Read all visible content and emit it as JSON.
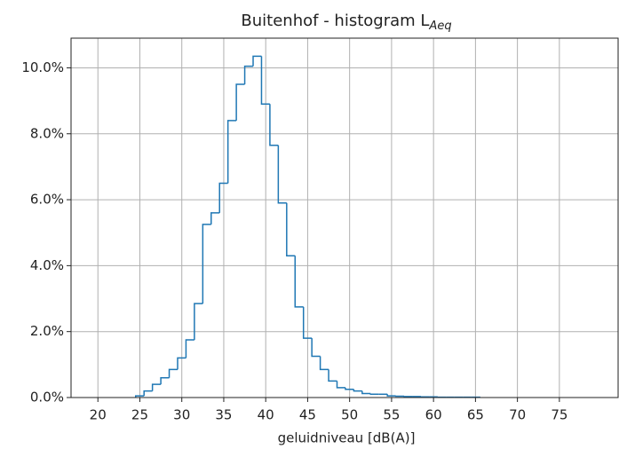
{
  "chart_data": {
    "type": "histogram",
    "title": "Buitenhof - histogram L",
    "title_subscript": "Aeq",
    "xlabel": "geluidniveau [dB(A)]",
    "bins": [
      24.5,
      25.5,
      26.5,
      27.5,
      28.5,
      29.5,
      30.5,
      31.5,
      32.5,
      33.5,
      34.5,
      35.5,
      36.5,
      37.5,
      38.5,
      39.5,
      40.5,
      41.5,
      42.5,
      43.5,
      44.5,
      45.5,
      46.5,
      47.5,
      48.5,
      49.5,
      50.5,
      51.5,
      52.5,
      53.5,
      54.5,
      55.5,
      56.5,
      57.5,
      58.5,
      59.5,
      60.5,
      61.5,
      62.5,
      63.5,
      64.5,
      65.5
    ],
    "values": [
      0.05,
      0.2,
      0.4,
      0.6,
      0.85,
      1.2,
      1.75,
      2.85,
      5.25,
      5.6,
      6.5,
      8.4,
      9.5,
      10.05,
      10.35,
      8.9,
      7.65,
      5.9,
      4.3,
      2.75,
      1.8,
      1.25,
      0.85,
      0.5,
      0.3,
      0.25,
      0.2,
      0.12,
      0.1,
      0.1,
      0.05,
      0.04,
      0.03,
      0.03,
      0.02,
      0.02,
      0.01,
      0.01,
      0.01,
      0.01,
      0.01
    ],
    "color": "#1f77b4",
    "xlim": [
      16.8,
      82
    ],
    "xticks": [
      20,
      25,
      30,
      35,
      40,
      45,
      50,
      55,
      60,
      65,
      70,
      75
    ],
    "ylim": [
      0,
      10.9
    ],
    "yticks": [
      {
        "value": 0,
        "label": "0.0%"
      },
      {
        "value": 2,
        "label": "2.0%"
      },
      {
        "value": 4,
        "label": "4.0%"
      },
      {
        "value": 6,
        "label": "6.0%"
      },
      {
        "value": 8,
        "label": "8.0%"
      },
      {
        "value": 10,
        "label": "10.0%"
      }
    ],
    "grid": true
  }
}
